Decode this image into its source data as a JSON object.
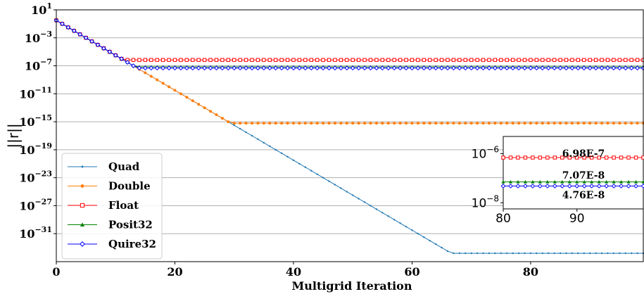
{
  "chart_data": {
    "type": "line",
    "xlabel": "Multigrid Iteration",
    "ylabel": "||r||",
    "xlim": [
      0,
      99
    ],
    "ylim_log10": [
      -35,
      1
    ],
    "yscale": "log",
    "grid": "horizontal",
    "legend_position": "lower-left",
    "x_ticks": [
      "0",
      "20",
      "40",
      "60",
      "80"
    ],
    "y_ticks": [
      {
        "base": "10",
        "exp": "1",
        "log": 1
      },
      {
        "base": "10",
        "exp": "−3",
        "log": -3
      },
      {
        "base": "10",
        "exp": "−7",
        "log": -7
      },
      {
        "base": "10",
        "exp": "−11",
        "log": -11
      },
      {
        "base": "10",
        "exp": "−15",
        "log": -15
      },
      {
        "base": "10",
        "exp": "−19",
        "log": -19
      },
      {
        "base": "10",
        "exp": "−23",
        "log": -23
      },
      {
        "base": "10",
        "exp": "−27",
        "log": -27
      },
      {
        "base": "10",
        "exp": "−31",
        "log": -31
      }
    ],
    "series": [
      {
        "name": "Quad",
        "color": "#1f77b4",
        "marker": "dot",
        "convergence_rate_log10_per_iter": -0.5,
        "start_log10": -0.5,
        "plateau_log10": -33.8,
        "plateau_start_iteration": 75
      },
      {
        "name": "Double",
        "color": "#ff7f0e",
        "marker": "circle",
        "convergence_rate_log10_per_iter": -0.5,
        "start_log10": -0.5,
        "plateau_log10": -15.2,
        "plateau_start_iteration": 33
      },
      {
        "name": "Float",
        "color": "#ff0000",
        "marker": "square",
        "convergence_rate_log10_per_iter": -0.5,
        "start_log10": -0.5,
        "plateau_log10": -6.16,
        "plateau_start_iteration": 12
      },
      {
        "name": "Posit32",
        "color": "#008000",
        "marker": "triangle",
        "convergence_rate_log10_per_iter": -0.5,
        "start_log10": -0.5,
        "plateau_log10": -7.15,
        "plateau_start_iteration": 14
      },
      {
        "name": "Quire32",
        "color": "#0000ff",
        "marker": "diamond",
        "convergence_rate_log10_per_iter": -0.5,
        "start_log10": -0.5,
        "plateau_log10": -7.32,
        "plateau_start_iteration": 14
      }
    ],
    "inset": {
      "xlim": [
        80,
        99
      ],
      "ylim_log10": [
        -8.25,
        -5.3
      ],
      "x_ticks": [
        "80",
        "90"
      ],
      "y_ticks": [
        {
          "base": "10",
          "exp": "−6",
          "log": -6
        },
        {
          "base": "10",
          "exp": "−8",
          "log": -8
        }
      ],
      "annotations": [
        {
          "text": "6.98E-7",
          "series": "Float"
        },
        {
          "text": "7.07E-8",
          "series": "Posit32"
        },
        {
          "text": "4.76E-8",
          "series": "Quire32"
        }
      ]
    }
  }
}
